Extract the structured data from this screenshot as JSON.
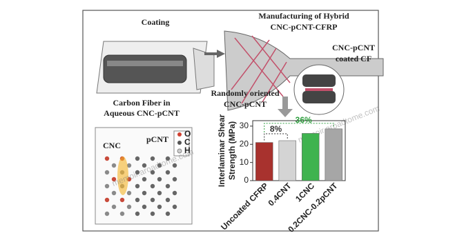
{
  "diagram": {
    "coating_title": "Coating",
    "manufacturing_title": [
      "Manufacturing of Hybrid",
      "CNC-pCNT-CFRP"
    ],
    "coated_cf": [
      "CNC-pCNT",
      "coated CF"
    ],
    "carbon_fiber": [
      "Carbon Fiber in",
      "Aqueous CNC-pCNT"
    ],
    "random": [
      "Randomly oriented",
      "CNC-pCNT"
    ],
    "molecule_labels": [
      "CNC",
      "pCNT"
    ],
    "atom_legend": [
      "O",
      "C",
      "H"
    ],
    "watermarks": [
      "memoir.aroadtome.com",
      "memoir.aroadtome.com"
    ]
  },
  "chart_data": {
    "type": "bar",
    "y_label": [
      "Interlaminar Shear",
      "Strength (MPa)"
    ],
    "categories": [
      "Uncoated CFRP",
      "0.4CNT",
      "1CNC",
      "0.2CNC-0.2pCNT"
    ],
    "values": [
      21,
      22,
      26,
      28.5
    ],
    "colors": [
      "#a8322e",
      "#d4d4d4",
      "#3fb34f",
      "#a6a6a6"
    ],
    "annotations": [
      {
        "text": "8%",
        "color": "#333333"
      },
      {
        "text": "36%",
        "color": "#2e9e3e"
      }
    ],
    "ylim": [
      0,
      33
    ],
    "yticks": [
      0,
      10,
      20,
      30
    ]
  }
}
